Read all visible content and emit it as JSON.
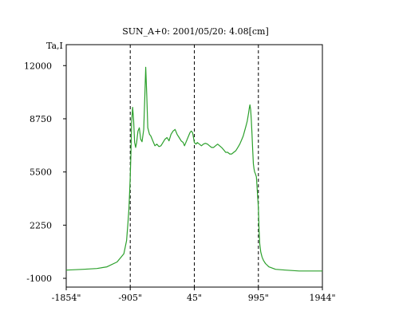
{
  "chart_data": {
    "type": "line",
    "title": "SUN_A+0: 2001/05/20: 4.08[cm]",
    "ylabel": "Ta,I",
    "xlabel": "",
    "xlim": [
      -1854,
      1944
    ],
    "ylim": [
      -1000,
      12500
    ],
    "grid": false,
    "x_ticks": [
      {
        "value": -1854,
        "label": "-1854\""
      },
      {
        "value": -905,
        "label": "-905\""
      },
      {
        "value": 45,
        "label": "45\""
      },
      {
        "value": 995,
        "label": "995\""
      },
      {
        "value": 1944,
        "label": "1944\""
      }
    ],
    "y_ticks": [
      {
        "value": 12000,
        "label": "12000"
      },
      {
        "value": 8750,
        "label": "8750"
      },
      {
        "value": 5500,
        "label": "5500"
      },
      {
        "value": 2250,
        "label": "2250"
      },
      {
        "value": -1000,
        "label": "-1000"
      }
    ],
    "vlines": [
      -905,
      45,
      995
    ],
    "colors": {
      "series": "#2ca02c",
      "axes": "#000000",
      "vlines": "#000000"
    },
    "series": [
      {
        "x": [
          -1854,
          -1600,
          -1400,
          -1250,
          -1100,
          -1000,
          -960,
          -940,
          -925,
          -915,
          -905,
          -895,
          -885,
          -870,
          -855,
          -840,
          -825,
          -810,
          -790,
          -770,
          -750,
          -730,
          -705,
          -690,
          -675,
          -660,
          -645,
          -620,
          -600,
          -570,
          -540,
          -510,
          -480,
          -450,
          -420,
          -390,
          -360,
          -330,
          -300,
          -270,
          -240,
          -210,
          -180,
          -150,
          -120,
          -100,
          -80,
          -60,
          -40,
          -20,
          0,
          20,
          45,
          70,
          90,
          120,
          150,
          180,
          210,
          240,
          270,
          300,
          330,
          360,
          390,
          420,
          450,
          480,
          510,
          540,
          570,
          600,
          630,
          660,
          690,
          720,
          750,
          770,
          790,
          810,
          830,
          850,
          860,
          870,
          880,
          890,
          900,
          910,
          920,
          930,
          940,
          950,
          965,
          980,
          995,
          1005,
          1015,
          1030,
          1050,
          1070,
          1100,
          1150,
          1250,
          1400,
          1600,
          1800,
          1944
        ],
        "y": [
          -500,
          -450,
          -400,
          -300,
          0,
          500,
          1300,
          2300,
          3200,
          4200,
          5200,
          6700,
          8500,
          9450,
          8700,
          7300,
          7000,
          7300,
          8000,
          8200,
          7500,
          7350,
          8100,
          10000,
          11900,
          10200,
          8200,
          7800,
          7700,
          7400,
          7100,
          7200,
          7050,
          7100,
          7300,
          7500,
          7600,
          7400,
          7800,
          8000,
          8100,
          7800,
          7600,
          7400,
          7300,
          7100,
          7300,
          7500,
          7700,
          7900,
          8000,
          7900,
          7300,
          7200,
          7300,
          7200,
          7100,
          7200,
          7250,
          7200,
          7100,
          7000,
          7000,
          7100,
          7200,
          7100,
          7000,
          6850,
          6700,
          6700,
          6600,
          6600,
          6700,
          6800,
          7000,
          7200,
          7500,
          7700,
          8000,
          8300,
          8600,
          9100,
          9400,
          9600,
          9300,
          8700,
          7800,
          6900,
          6000,
          5700,
          5500,
          5400,
          5200,
          4300,
          3300,
          2000,
          1100,
          600,
          300,
          100,
          -100,
          -300,
          -450,
          -500,
          -550,
          -550,
          -550
        ]
      }
    ]
  }
}
